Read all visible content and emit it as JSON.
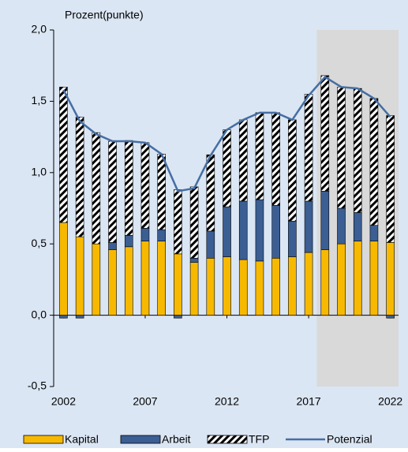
{
  "chart_data": {
    "type": "bar",
    "stacked": true,
    "y_label": "Prozent(punkte)",
    "x": [
      2002,
      2003,
      2004,
      2005,
      2006,
      2007,
      2008,
      2009,
      2010,
      2011,
      2012,
      2013,
      2014,
      2015,
      2016,
      2017,
      2018,
      2019,
      2020,
      2021,
      2022
    ],
    "xlim": [
      2001.4,
      2022.5
    ],
    "xticks": [
      2002,
      2007,
      2012,
      2017,
      2022
    ],
    "ylim": [
      -0.5,
      2.0
    ],
    "yticks": [
      {
        "value": -0.5,
        "label": "-0,5"
      },
      {
        "value": 0,
        "label": "0,0"
      },
      {
        "value": 0.5,
        "label": "0,5"
      },
      {
        "value": 1.0,
        "label": "1,0"
      },
      {
        "value": 1.5,
        "label": "1,5"
      },
      {
        "value": 2.0,
        "label": "2,0"
      }
    ],
    "shaded_xrange": [
      2017.5,
      2022.5
    ],
    "shade_color": "#d9d9d9",
    "background": "#dbe6f4",
    "series": [
      {
        "name": "Kapital",
        "type": "bar",
        "color": "#f7b900",
        "values": [
          0.65,
          0.55,
          0.5,
          0.46,
          0.48,
          0.52,
          0.52,
          0.43,
          0.37,
          0.4,
          0.41,
          0.39,
          0.38,
          0.4,
          0.41,
          0.44,
          0.46,
          0.5,
          0.52,
          0.52,
          0.51
        ]
      },
      {
        "name": "Arbeit",
        "type": "bar",
        "color": "#3b5e93",
        "values": [
          -0.02,
          -0.02,
          0.0,
          0.05,
          0.08,
          0.09,
          0.08,
          -0.02,
          0.03,
          0.19,
          0.35,
          0.41,
          0.43,
          0.37,
          0.25,
          0.36,
          0.41,
          0.25,
          0.2,
          0.11,
          -0.02
        ]
      },
      {
        "name": "TFP",
        "type": "bar",
        "color": "#000000",
        "hatch": true,
        "values": [
          0.95,
          0.84,
          0.78,
          0.71,
          0.665,
          0.6,
          0.53,
          0.45,
          0.5,
          0.535,
          0.54,
          0.57,
          0.61,
          0.65,
          0.71,
          0.75,
          0.81,
          0.85,
          0.87,
          0.89,
          0.89
        ]
      },
      {
        "name": "Potenzial",
        "type": "line",
        "color": "#456ea3",
        "values": [
          1.58,
          1.36,
          1.27,
          1.22,
          1.22,
          1.21,
          1.13,
          0.87,
          0.89,
          1.12,
          1.3,
          1.37,
          1.42,
          1.42,
          1.37,
          1.54,
          1.67,
          1.6,
          1.59,
          1.52,
          1.39
        ]
      }
    ]
  }
}
